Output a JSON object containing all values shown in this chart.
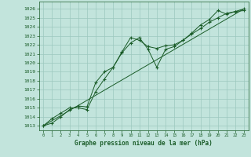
{
  "title": "Graphe pression niveau de la mer (hPa)",
  "background_color": "#c2e4dc",
  "grid_color": "#9cc8be",
  "line_color": "#1a5c28",
  "text_color": "#1a5c28",
  "ylim": [
    1012.5,
    1026.8
  ],
  "xlim": [
    -0.5,
    23.5
  ],
  "yticks": [
    1013,
    1014,
    1015,
    1016,
    1017,
    1018,
    1019,
    1020,
    1021,
    1022,
    1023,
    1024,
    1025,
    1026
  ],
  "xticks": [
    0,
    1,
    2,
    3,
    4,
    5,
    6,
    7,
    8,
    9,
    10,
    11,
    12,
    13,
    14,
    15,
    16,
    17,
    18,
    19,
    20,
    21,
    22,
    23
  ],
  "line1_x": [
    0,
    1,
    2,
    3,
    4,
    5,
    6,
    7,
    8,
    9,
    10,
    11,
    12,
    13,
    14,
    15,
    16,
    17,
    18,
    19,
    20,
    21,
    22,
    23
  ],
  "line1_y": [
    1013.0,
    1013.3,
    1014.0,
    1014.8,
    1015.2,
    1015.1,
    1017.8,
    1019.0,
    1019.5,
    1021.2,
    1022.8,
    1022.5,
    1021.8,
    1021.6,
    1021.9,
    1022.0,
    1022.5,
    1023.2,
    1023.8,
    1024.5,
    1025.0,
    1025.5,
    1025.7,
    1025.8
  ],
  "line2_x": [
    0,
    1,
    2,
    3,
    4,
    5,
    6,
    7,
    8,
    9,
    10,
    11,
    12,
    13,
    14,
    15,
    16,
    17,
    18,
    19,
    20,
    21,
    22,
    23
  ],
  "line2_y": [
    1013.0,
    1013.8,
    1014.4,
    1015.0,
    1015.0,
    1014.8,
    1016.8,
    1018.2,
    1019.5,
    1021.1,
    1022.2,
    1022.8,
    1021.5,
    1019.5,
    1021.5,
    1021.8,
    1022.5,
    1023.3,
    1024.2,
    1024.8,
    1025.8,
    1025.4,
    1025.7,
    1026.0
  ],
  "line3_x": [
    0,
    23
  ],
  "line3_y": [
    1013.0,
    1026.0
  ]
}
